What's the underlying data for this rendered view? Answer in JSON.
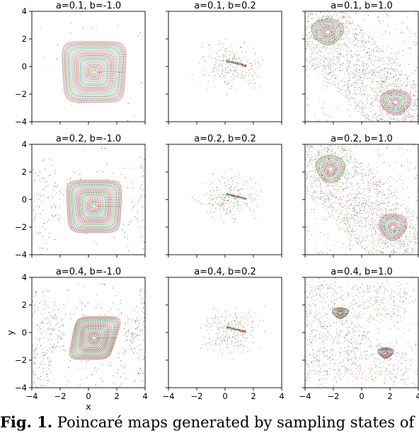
{
  "chart_data": [
    {
      "type": "scatter",
      "title": "a=0.1, b=-1.0",
      "a": 0.1,
      "b": -1.0,
      "structure": "nested-loops-island",
      "center": [
        0.4,
        -0.4
      ],
      "ylabel": "",
      "xlabel": ""
    },
    {
      "type": "scatter",
      "title": "a=0.1, b=0.2",
      "a": 0.1,
      "b": 0.2,
      "structure": "sparse-streak",
      "center": [
        1.0,
        0.05
      ],
      "ylabel": "",
      "xlabel": ""
    },
    {
      "type": "scatter",
      "title": "a=0.1, b=1.0",
      "a": 0.1,
      "b": 1.0,
      "structure": "two-islands-chaos",
      "centers": [
        [
          -2.4,
          2.5
        ],
        [
          2.4,
          -2.6
        ]
      ],
      "ylabel": "",
      "xlabel": ""
    },
    {
      "type": "scatter",
      "title": "a=0.2, b=-1.0",
      "a": 0.2,
      "b": -1.0,
      "structure": "nested-loops-island",
      "center": [
        0.4,
        -0.5
      ],
      "ylabel": "",
      "xlabel": ""
    },
    {
      "type": "scatter",
      "title": "a=0.2, b=0.2",
      "a": 0.2,
      "b": 0.2,
      "structure": "sparse-streak",
      "center": [
        1.0,
        0.1
      ],
      "ylabel": "",
      "xlabel": ""
    },
    {
      "type": "scatter",
      "title": "a=0.2, b=1.0",
      "a": 0.2,
      "b": 1.0,
      "structure": "two-islands-chaos",
      "centers": [
        [
          -2.2,
          2.2
        ],
        [
          2.2,
          -2.0
        ]
      ],
      "ylabel": "",
      "xlabel": ""
    },
    {
      "type": "scatter",
      "title": "a=0.4, b=-1.0",
      "a": 0.4,
      "b": -1.0,
      "structure": "nested-loops-island",
      "center": [
        0.4,
        -0.4
      ],
      "ylabel": "y",
      "xlabel": "x"
    },
    {
      "type": "scatter",
      "title": "a=0.4, b=0.2",
      "a": 0.4,
      "b": 0.2,
      "structure": "sparse-streak",
      "center": [
        1.0,
        0.05
      ],
      "ylabel": "",
      "xlabel": ""
    },
    {
      "type": "scatter",
      "title": "a=0.4, b=1.0",
      "a": 0.4,
      "b": 1.0,
      "structure": "two-islands-chaos",
      "centers": [
        [
          -1.5,
          1.4
        ],
        [
          1.7,
          -1.5
        ]
      ],
      "ylabel": "",
      "xlabel": ""
    }
  ],
  "axes": {
    "xlim": [
      -4,
      4
    ],
    "ylim": [
      -4,
      4
    ],
    "xticks": [
      "−4",
      "−2",
      "0",
      "2",
      "4"
    ],
    "yticks": [
      "4",
      "2",
      "0",
      "−2",
      "−4"
    ],
    "grid": false
  },
  "caption": {
    "label": "Fig. 1.",
    "text": " Poincaré maps generated by sampling states of"
  }
}
